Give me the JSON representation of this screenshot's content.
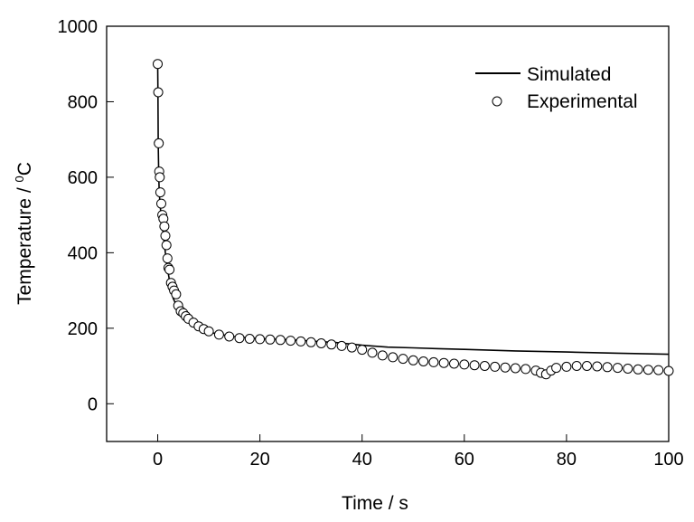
{
  "chart_data": {
    "type": "line",
    "title": "",
    "xlabel": "Time / s",
    "ylabel_main": "Temperature / ",
    "ylabel_sup": "0",
    "ylabel_unit": "C",
    "xlim": [
      -10,
      100
    ],
    "ylim": [
      -100,
      1000
    ],
    "xticks": [
      0,
      20,
      40,
      60,
      80,
      100
    ],
    "yticks": [
      0,
      200,
      400,
      600,
      800,
      1000
    ],
    "grid": false,
    "legend_position": "top-right",
    "series": [
      {
        "name": "Simulated",
        "style": "line",
        "color": "#000000",
        "x": [
          0,
          0.05,
          0.1,
          0.2,
          0.3,
          0.5,
          0.75,
          1,
          1.5,
          2,
          2.5,
          3,
          4,
          5,
          6,
          8,
          10,
          12,
          15,
          20,
          25,
          30,
          35,
          40,
          45,
          50,
          55,
          60,
          70,
          80,
          90,
          100
        ],
        "y": [
          900,
          820,
          690,
          600,
          560,
          520,
          490,
          460,
          400,
          350,
          310,
          280,
          250,
          230,
          218,
          200,
          190,
          184,
          178,
          172,
          170,
          166,
          162,
          155,
          150,
          148,
          146,
          144,
          140,
          137,
          134,
          131
        ]
      },
      {
        "name": "Experimental",
        "style": "markers",
        "marker": "open-circle",
        "color": "#000000",
        "x": [
          0,
          0.1,
          0.2,
          0.3,
          0.4,
          0.5,
          0.7,
          0.9,
          1.1,
          1.3,
          1.5,
          1.7,
          1.9,
          2.1,
          2.3,
          2.6,
          2.9,
          3.2,
          3.6,
          4.0,
          4.5,
          5,
          5.5,
          6,
          7,
          8,
          9,
          10,
          12,
          14,
          16,
          18,
          20,
          22,
          24,
          26,
          28,
          30,
          32,
          34,
          36,
          38,
          40,
          42,
          44,
          46,
          48,
          50,
          52,
          54,
          56,
          58,
          60,
          62,
          64,
          66,
          68,
          70,
          72,
          74,
          75,
          76,
          77,
          78,
          80,
          82,
          84,
          86,
          88,
          90,
          92,
          94,
          96,
          98,
          100
        ],
        "y": [
          900,
          825,
          690,
          615,
          600,
          560,
          530,
          500,
          490,
          470,
          445,
          420,
          385,
          360,
          355,
          320,
          310,
          300,
          290,
          260,
          245,
          240,
          232,
          225,
          215,
          205,
          198,
          192,
          183,
          178,
          174,
          172,
          171,
          170,
          169,
          167,
          165,
          163,
          160,
          157,
          153,
          149,
          143,
          135,
          128,
          123,
          119,
          115,
          112,
          110,
          108,
          106,
          104,
          102,
          100,
          98,
          96,
          94,
          92,
          88,
          82,
          78,
          88,
          95,
          98,
          100,
          100,
          99,
          97,
          95,
          93,
          91,
          90,
          89,
          87
        ]
      }
    ]
  }
}
